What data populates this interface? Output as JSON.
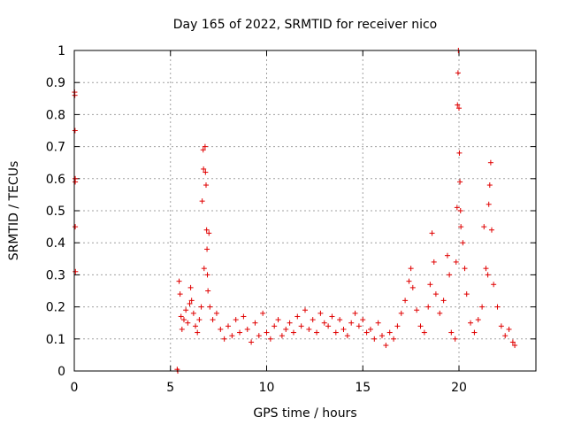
{
  "chart_data": {
    "type": "scatter",
    "title": "Day 165 of 2022, SRMTID for receiver nico",
    "xlabel": "GPS time / hours",
    "ylabel": "SRMTID / TECUs",
    "xlim": [
      0,
      24
    ],
    "ylim": [
      0,
      1
    ],
    "xticks": [
      0,
      5,
      10,
      15,
      20
    ],
    "xtick_labels": [
      "0",
      "5",
      "10",
      "15",
      "20"
    ],
    "yticks": [
      0,
      0.1,
      0.2,
      0.3,
      0.4,
      0.5,
      0.6,
      0.7,
      0.8,
      0.9,
      1
    ],
    "ytick_labels": [
      "0",
      "0.1",
      "0.2",
      "0.3",
      "0.4",
      "0.5",
      "0.6",
      "0.7",
      "0.8",
      "0.9",
      "1"
    ],
    "grid": true,
    "marker": "+",
    "color": "#e00000",
    "series": [
      {
        "name": "SRMTID",
        "points": [
          [
            0.02,
            0.87
          ],
          [
            0.03,
            0.86
          ],
          [
            0.04,
            0.75
          ],
          [
            0.05,
            0.6
          ],
          [
            0.05,
            0.59
          ],
          [
            0.05,
            0.45
          ],
          [
            0.06,
            0.31
          ],
          [
            5.35,
            0.005
          ],
          [
            5.38,
            0.0
          ],
          [
            5.45,
            0.28
          ],
          [
            5.5,
            0.24
          ],
          [
            5.55,
            0.17
          ],
          [
            5.6,
            0.13
          ],
          [
            5.7,
            0.16
          ],
          [
            5.8,
            0.19
          ],
          [
            5.9,
            0.15
          ],
          [
            6.0,
            0.21
          ],
          [
            6.05,
            0.26
          ],
          [
            6.1,
            0.22
          ],
          [
            6.2,
            0.18
          ],
          [
            6.3,
            0.14
          ],
          [
            6.4,
            0.12
          ],
          [
            6.5,
            0.16
          ],
          [
            6.6,
            0.2
          ],
          [
            6.65,
            0.53
          ],
          [
            6.7,
            0.69
          ],
          [
            6.72,
            0.63
          ],
          [
            6.75,
            0.32
          ],
          [
            6.8,
            0.7
          ],
          [
            6.82,
            0.62
          ],
          [
            6.85,
            0.58
          ],
          [
            6.88,
            0.44
          ],
          [
            6.9,
            0.38
          ],
          [
            6.92,
            0.3
          ],
          [
            6.95,
            0.25
          ],
          [
            7.0,
            0.43
          ],
          [
            7.05,
            0.2
          ],
          [
            7.2,
            0.16
          ],
          [
            7.4,
            0.18
          ],
          [
            7.6,
            0.13
          ],
          [
            7.8,
            0.1
          ],
          [
            8.0,
            0.14
          ],
          [
            8.2,
            0.11
          ],
          [
            8.4,
            0.16
          ],
          [
            8.6,
            0.12
          ],
          [
            8.8,
            0.17
          ],
          [
            9.0,
            0.13
          ],
          [
            9.2,
            0.09
          ],
          [
            9.4,
            0.15
          ],
          [
            9.6,
            0.11
          ],
          [
            9.8,
            0.18
          ],
          [
            10.0,
            0.12
          ],
          [
            10.2,
            0.1
          ],
          [
            10.4,
            0.14
          ],
          [
            10.6,
            0.16
          ],
          [
            10.8,
            0.11
          ],
          [
            11.0,
            0.13
          ],
          [
            11.2,
            0.15
          ],
          [
            11.4,
            0.12
          ],
          [
            11.6,
            0.17
          ],
          [
            11.8,
            0.14
          ],
          [
            12.0,
            0.19
          ],
          [
            12.2,
            0.13
          ],
          [
            12.4,
            0.16
          ],
          [
            12.6,
            0.12
          ],
          [
            12.8,
            0.18
          ],
          [
            13.0,
            0.15
          ],
          [
            13.2,
            0.14
          ],
          [
            13.4,
            0.17
          ],
          [
            13.6,
            0.12
          ],
          [
            13.8,
            0.16
          ],
          [
            14.0,
            0.13
          ],
          [
            14.2,
            0.11
          ],
          [
            14.4,
            0.15
          ],
          [
            14.6,
            0.18
          ],
          [
            14.8,
            0.14
          ],
          [
            15.0,
            0.16
          ],
          [
            15.2,
            0.12
          ],
          [
            15.4,
            0.13
          ],
          [
            15.6,
            0.1
          ],
          [
            15.8,
            0.15
          ],
          [
            16.0,
            0.11
          ],
          [
            16.2,
            0.08
          ],
          [
            16.4,
            0.12
          ],
          [
            16.6,
            0.1
          ],
          [
            16.8,
            0.14
          ],
          [
            17.0,
            0.18
          ],
          [
            17.2,
            0.22
          ],
          [
            17.4,
            0.28
          ],
          [
            17.5,
            0.32
          ],
          [
            17.6,
            0.26
          ],
          [
            17.8,
            0.19
          ],
          [
            18.0,
            0.14
          ],
          [
            18.2,
            0.12
          ],
          [
            18.4,
            0.2
          ],
          [
            18.5,
            0.27
          ],
          [
            18.6,
            0.43
          ],
          [
            18.7,
            0.34
          ],
          [
            18.8,
            0.24
          ],
          [
            19.0,
            0.18
          ],
          [
            19.2,
            0.22
          ],
          [
            19.4,
            0.36
          ],
          [
            19.5,
            0.3
          ],
          [
            19.6,
            0.12
          ],
          [
            19.8,
            0.1
          ],
          [
            19.85,
            0.34
          ],
          [
            19.9,
            0.51
          ],
          [
            19.92,
            0.83
          ],
          [
            19.95,
            0.93
          ],
          [
            19.97,
            1.0
          ],
          [
            20.0,
            0.82
          ],
          [
            20.02,
            0.68
          ],
          [
            20.05,
            0.59
          ],
          [
            20.08,
            0.5
          ],
          [
            20.1,
            0.45
          ],
          [
            20.2,
            0.4
          ],
          [
            20.3,
            0.32
          ],
          [
            20.4,
            0.24
          ],
          [
            20.6,
            0.15
          ],
          [
            20.8,
            0.12
          ],
          [
            21.0,
            0.16
          ],
          [
            21.2,
            0.2
          ],
          [
            21.3,
            0.45
          ],
          [
            21.4,
            0.32
          ],
          [
            21.5,
            0.3
          ],
          [
            21.55,
            0.52
          ],
          [
            21.6,
            0.58
          ],
          [
            21.65,
            0.65
          ],
          [
            21.7,
            0.44
          ],
          [
            21.8,
            0.27
          ],
          [
            22.0,
            0.2
          ],
          [
            22.2,
            0.14
          ],
          [
            22.4,
            0.11
          ],
          [
            22.6,
            0.13
          ],
          [
            22.8,
            0.09
          ],
          [
            22.9,
            0.08
          ]
        ]
      }
    ]
  }
}
